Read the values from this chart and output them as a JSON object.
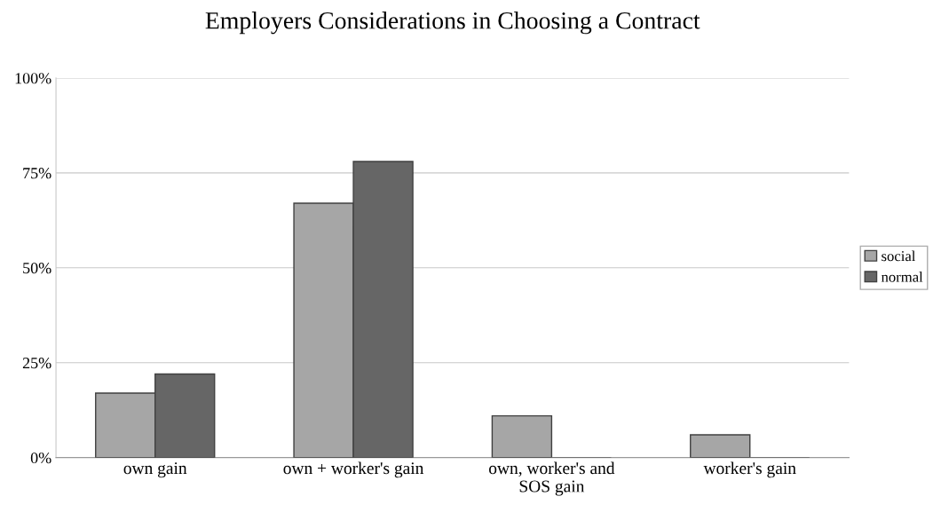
{
  "chart_data": {
    "type": "bar",
    "title": "Employers Considerations in Choosing a Contract",
    "categories": [
      "own gain",
      "own + worker's gain",
      "own, worker's and\nSOS gain",
      "worker's gain"
    ],
    "series": [
      {
        "name": "social",
        "color": "#a6a6a6",
        "values": [
          17,
          67,
          11,
          6
        ]
      },
      {
        "name": "normal",
        "color": "#666666",
        "values": [
          22,
          78,
          0,
          0
        ]
      }
    ],
    "ylim": [
      0,
      100
    ],
    "yticks": [
      {
        "value": 0,
        "label": "0%"
      },
      {
        "value": 25,
        "label": "25%"
      },
      {
        "value": 50,
        "label": "50%"
      },
      {
        "value": 75,
        "label": "75%"
      },
      {
        "value": 100,
        "label": "100%"
      }
    ],
    "grid": "y",
    "legend": "right"
  }
}
